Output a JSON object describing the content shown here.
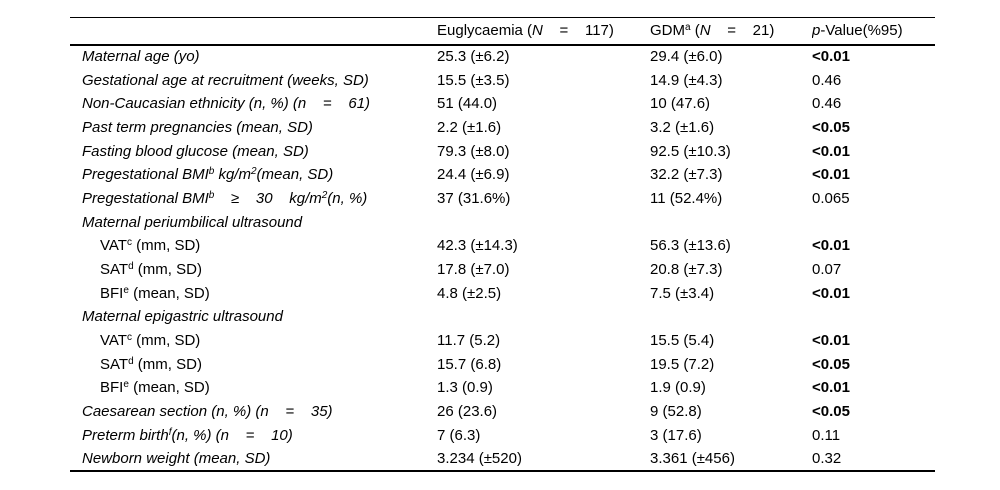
{
  "table": {
    "header": [
      {
        "segments": []
      },
      {
        "segments": [
          {
            "text": "Euglycaemia ("
          },
          {
            "text": "N",
            "italic": true
          },
          {
            "text": "    =    117)"
          }
        ]
      },
      {
        "segments": [
          {
            "text": "GDM"
          },
          {
            "text": "a",
            "sup": true
          },
          {
            "text": " ("
          },
          {
            "text": "N",
            "italic": true
          },
          {
            "text": "    =    21)"
          }
        ]
      },
      {
        "segments": [
          {
            "text": "p",
            "italic": true
          },
          {
            "text": "-Value(%95)"
          }
        ]
      }
    ],
    "rows": [
      {
        "type": "data",
        "italic": true,
        "indent": false,
        "label": [
          {
            "text": "Maternal age (yo)"
          }
        ],
        "euglycaemia": "25.3 (±6.2)",
        "gdm": "29.4 (±6.0)",
        "p": "<0.01",
        "p_bold": true
      },
      {
        "type": "data",
        "italic": true,
        "indent": false,
        "label": [
          {
            "text": "Gestational age at recruitment (weeks, SD)"
          }
        ],
        "euglycaemia": "15.5 (±3.5)",
        "gdm": "14.9 (±4.3)",
        "p": "0.46",
        "p_bold": false
      },
      {
        "type": "data",
        "italic": true,
        "indent": false,
        "label": [
          {
            "text": "Non-Caucasian ethnicity (n, %) (n    =    61)"
          }
        ],
        "euglycaemia": "51 (44.0)",
        "gdm": "10 (47.6)",
        "p": "0.46",
        "p_bold": false
      },
      {
        "type": "data",
        "italic": true,
        "indent": false,
        "label": [
          {
            "text": "Past term pregnancies (mean, SD)"
          }
        ],
        "euglycaemia": "2.2 (±1.6)",
        "gdm": "3.2 (±1.6)",
        "p": "<0.05",
        "p_bold": true
      },
      {
        "type": "data",
        "italic": true,
        "indent": false,
        "label": [
          {
            "text": "Fasting blood glucose (mean, SD)"
          }
        ],
        "euglycaemia": "79.3 (±8.0)",
        "gdm": "92.5 (±10.3)",
        "p": "<0.01",
        "p_bold": true
      },
      {
        "type": "data",
        "italic": true,
        "indent": false,
        "label": [
          {
            "text": "Pregestational BMI"
          },
          {
            "text": "b",
            "sup": true
          },
          {
            "text": " kg/m"
          },
          {
            "text": "2",
            "sup": true
          },
          {
            "text": "(mean, SD)"
          }
        ],
        "euglycaemia": "24.4 (±6.9)",
        "gdm": "32.2 (±7.3)",
        "p": "<0.01",
        "p_bold": true
      },
      {
        "type": "data",
        "italic": true,
        "indent": false,
        "label": [
          {
            "text": "Pregestational BMI"
          },
          {
            "text": "b",
            "sup": true
          },
          {
            "text": "    ≥    30    kg/m"
          },
          {
            "text": "2",
            "sup": true
          },
          {
            "text": "(n, %)"
          }
        ],
        "euglycaemia": "37 (31.6%)",
        "gdm": "11 (52.4%)",
        "p": "0.065",
        "p_bold": false
      },
      {
        "type": "section",
        "italic": true,
        "indent": false,
        "label": [
          {
            "text": "Maternal periumbilical ultrasound"
          }
        ],
        "euglycaemia": "",
        "gdm": "",
        "p": "",
        "p_bold": false
      },
      {
        "type": "data",
        "italic": false,
        "indent": true,
        "label": [
          {
            "text": "VAT"
          },
          {
            "text": "c",
            "sup": true
          },
          {
            "text": " (mm, SD)"
          }
        ],
        "euglycaemia": "42.3 (±14.3)",
        "gdm": "56.3 (±13.6)",
        "p": "<0.01",
        "p_bold": true
      },
      {
        "type": "data",
        "italic": false,
        "indent": true,
        "label": [
          {
            "text": "SAT"
          },
          {
            "text": "d",
            "sup": true
          },
          {
            "text": " (mm, SD)"
          }
        ],
        "euglycaemia": "17.8 (±7.0)",
        "gdm": "20.8 (±7.3)",
        "p": "0.07",
        "p_bold": false
      },
      {
        "type": "data",
        "italic": false,
        "indent": true,
        "label": [
          {
            "text": "BFI"
          },
          {
            "text": "e",
            "sup": true
          },
          {
            "text": " (mean, SD)"
          }
        ],
        "euglycaemia": "4.8 (±2.5)",
        "gdm": "7.5 (±3.4)",
        "p": "<0.01",
        "p_bold": true
      },
      {
        "type": "section",
        "italic": true,
        "indent": false,
        "label": [
          {
            "text": "Maternal epigastric ultrasound"
          }
        ],
        "euglycaemia": "",
        "gdm": "",
        "p": "",
        "p_bold": false
      },
      {
        "type": "data",
        "italic": false,
        "indent": true,
        "label": [
          {
            "text": "VAT"
          },
          {
            "text": "c",
            "sup": true
          },
          {
            "text": " (mm, SD)"
          }
        ],
        "euglycaemia": "11.7 (5.2)",
        "gdm": "15.5 (5.4)",
        "p": "<0.01",
        "p_bold": true
      },
      {
        "type": "data",
        "italic": false,
        "indent": true,
        "label": [
          {
            "text": "SAT"
          },
          {
            "text": "d",
            "sup": true
          },
          {
            "text": " (mm, SD)"
          }
        ],
        "euglycaemia": "15.7 (6.8)",
        "gdm": "19.5 (7.2)",
        "p": "<0.05",
        "p_bold": true
      },
      {
        "type": "data",
        "italic": false,
        "indent": true,
        "label": [
          {
            "text": "BFI"
          },
          {
            "text": "e",
            "sup": true
          },
          {
            "text": " (mean, SD)"
          }
        ],
        "euglycaemia": "1.3 (0.9)",
        "gdm": "1.9 (0.9)",
        "p": "<0.01",
        "p_bold": true
      },
      {
        "type": "data",
        "italic": true,
        "indent": false,
        "label": [
          {
            "text": "Caesarean section (n, %) (n    =    35)"
          }
        ],
        "euglycaemia": "26 (23.6)",
        "gdm": "9 (52.8)",
        "p": "<0.05",
        "p_bold": true
      },
      {
        "type": "data",
        "italic": true,
        "indent": false,
        "label": [
          {
            "text": "Preterm birth"
          },
          {
            "text": "f",
            "sup": true
          },
          {
            "text": "(n, %) (n    =    10)"
          }
        ],
        "euglycaemia": "7 (6.3)",
        "gdm": "3 (17.6)",
        "p": "0.11",
        "p_bold": false
      },
      {
        "type": "data",
        "italic": true,
        "indent": false,
        "label": [
          {
            "text": "Newborn weight (mean, SD)"
          }
        ],
        "euglycaemia": "3.234 (±520)",
        "gdm": "3.361 (±456)",
        "p": "0.32",
        "p_bold": false
      }
    ]
  }
}
